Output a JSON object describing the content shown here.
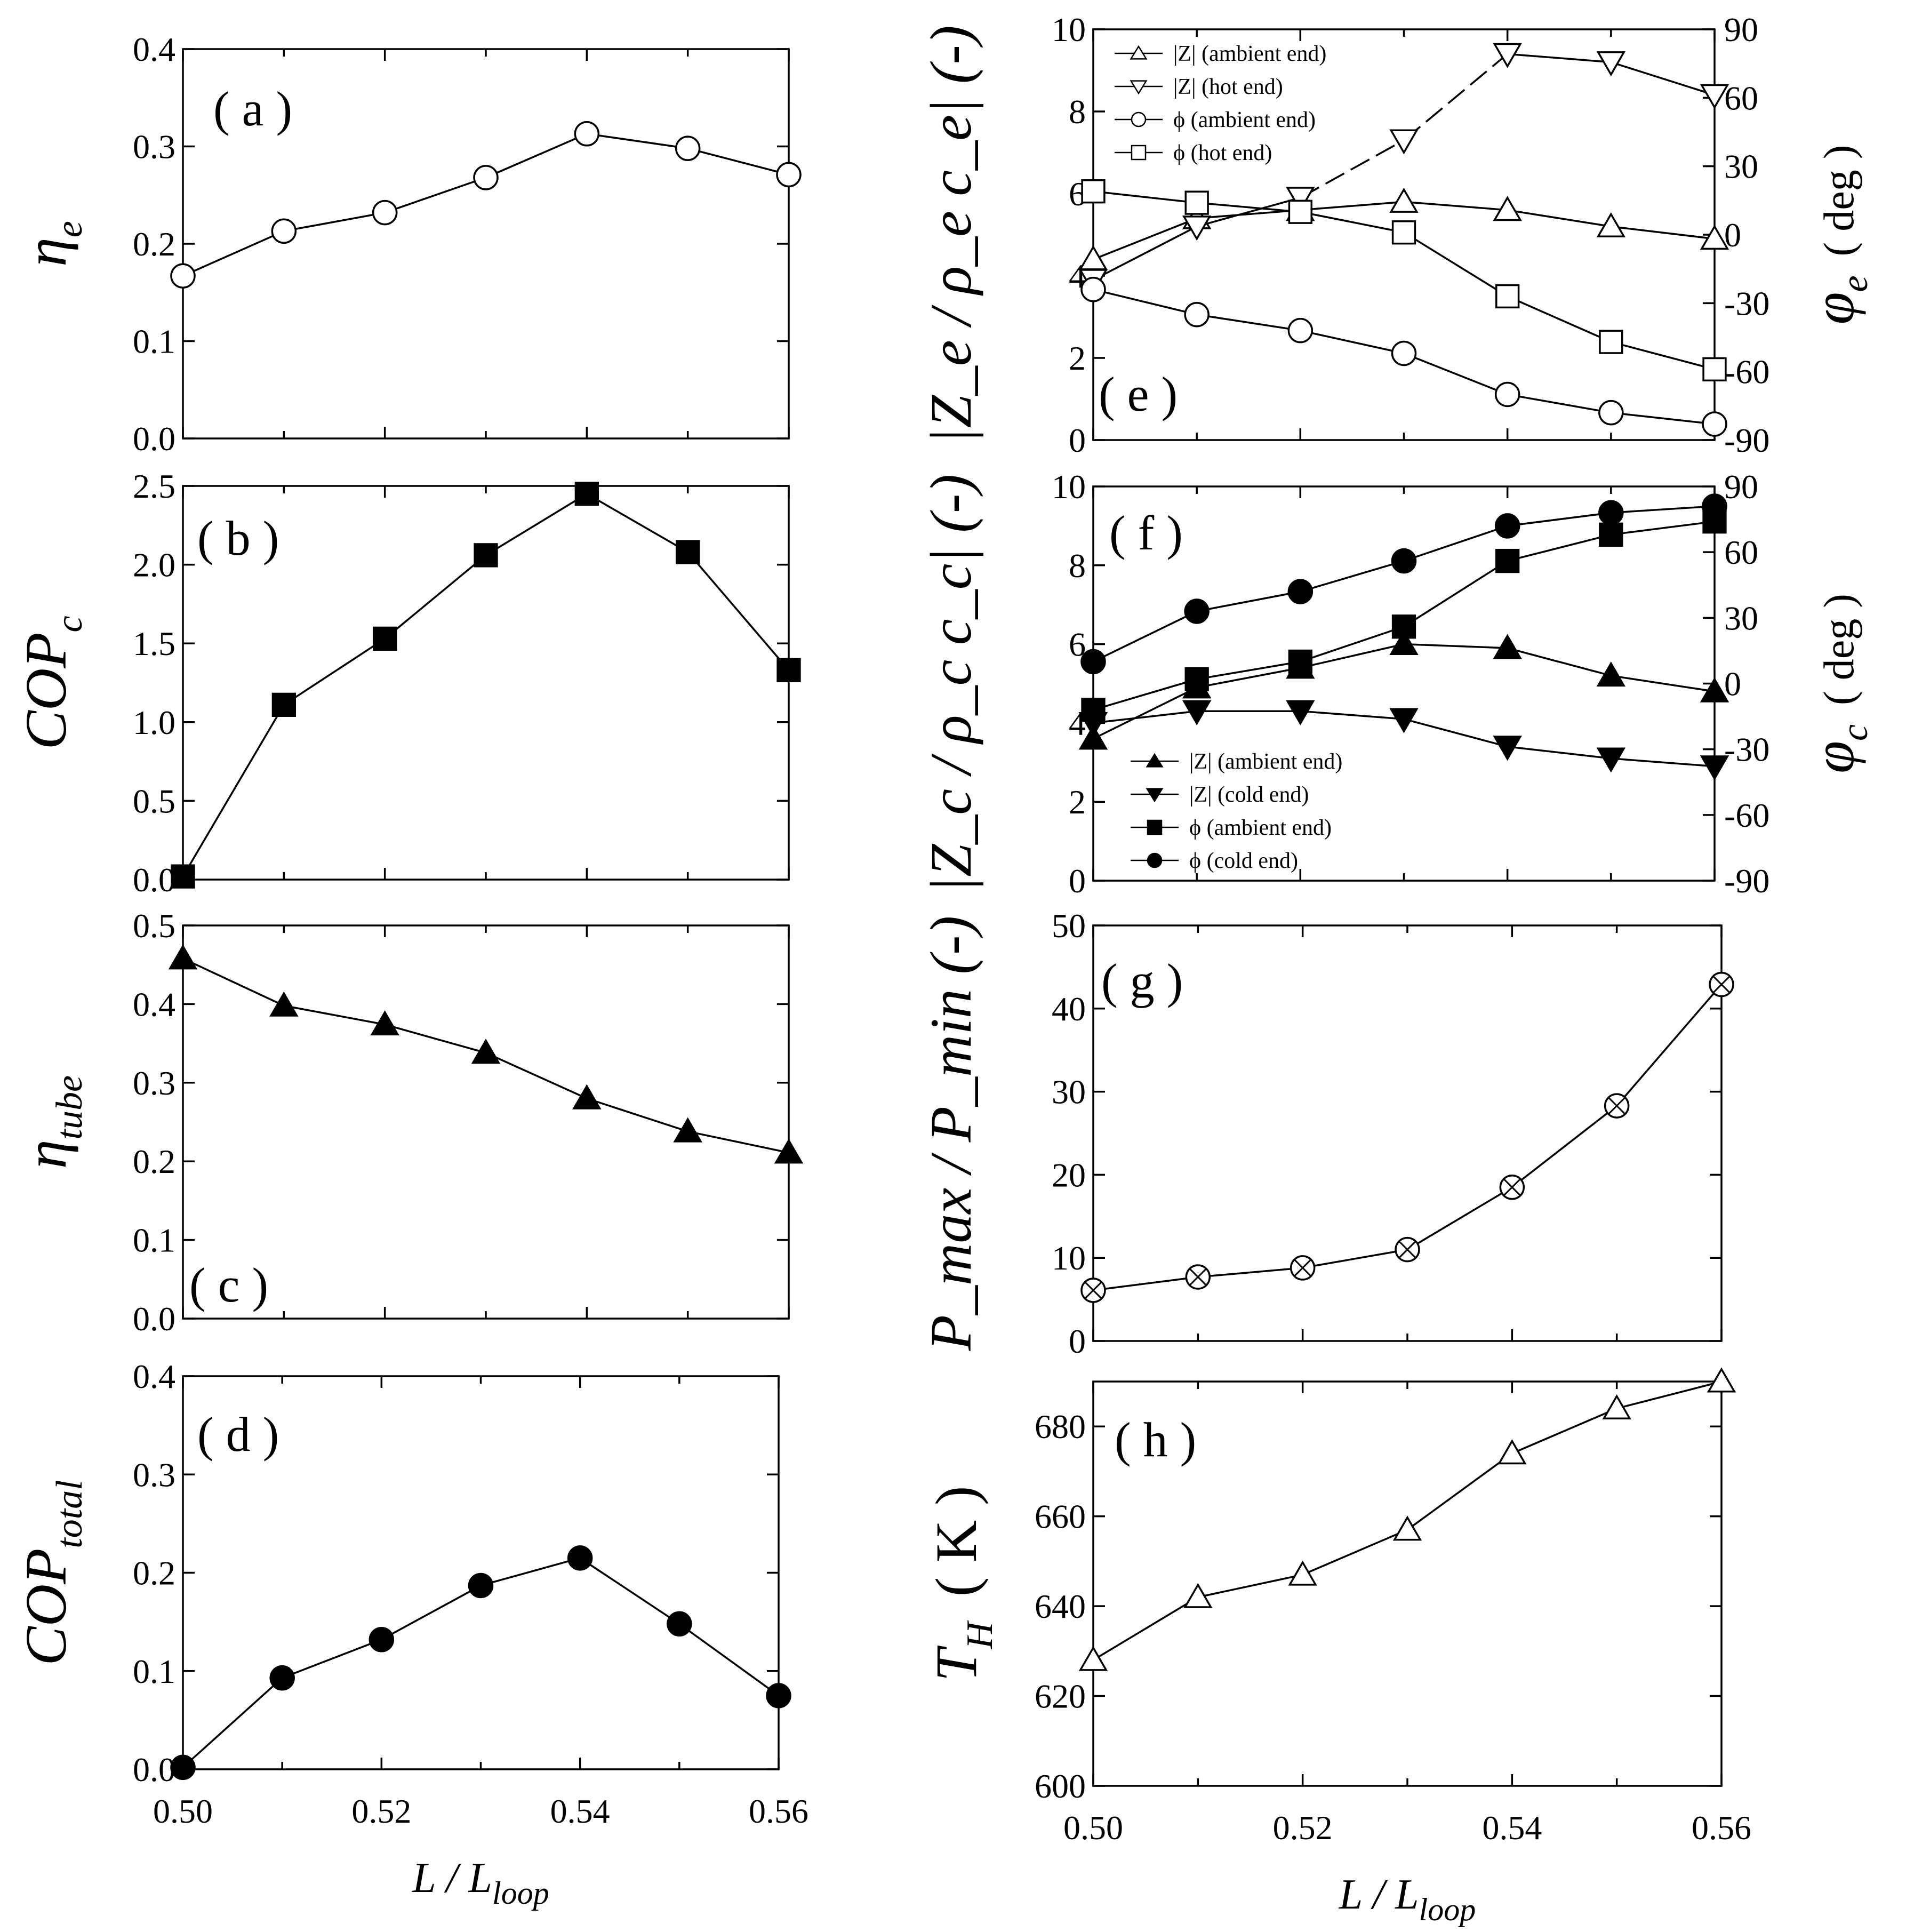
{
  "chart_data": [
    {
      "id": "a",
      "type": "line",
      "panel_label": "( a )",
      "ylabel": "η",
      "ylabel_sub": "e",
      "x": [
        0.5,
        0.51,
        0.52,
        0.53,
        0.54,
        0.55,
        0.56
      ],
      "xlim": [
        0.5,
        0.56
      ],
      "ylim": [
        0.0,
        0.4
      ],
      "yticks": [
        "0.0",
        "0.1",
        "0.2",
        "0.3",
        "0.4"
      ],
      "series": [
        {
          "name": "eta_e",
          "marker": "circle-open",
          "values": [
            0.167,
            0.213,
            0.232,
            0.268,
            0.313,
            0.298,
            0.271
          ]
        }
      ]
    },
    {
      "id": "b",
      "type": "line",
      "panel_label": "( b )",
      "ylabel": "COP",
      "ylabel_sub": "c",
      "x": [
        0.5,
        0.51,
        0.52,
        0.53,
        0.54,
        0.55,
        0.56
      ],
      "xlim": [
        0.5,
        0.56
      ],
      "ylim": [
        0.0,
        2.5
      ],
      "yticks": [
        "0.0",
        "0.5",
        "1.0",
        "1.5",
        "2.0",
        "2.5"
      ],
      "series": [
        {
          "name": "COP_c",
          "marker": "square-filled",
          "values": [
            0.02,
            1.11,
            1.53,
            2.06,
            2.45,
            2.08,
            1.33
          ]
        }
      ]
    },
    {
      "id": "c",
      "type": "line",
      "panel_label": "( c )",
      "ylabel": "η",
      "ylabel_sub": "tube",
      "x": [
        0.5,
        0.51,
        0.52,
        0.53,
        0.54,
        0.55,
        0.56
      ],
      "xlim": [
        0.5,
        0.56
      ],
      "ylim": [
        0.0,
        0.5
      ],
      "yticks": [
        "0.0",
        "0.1",
        "0.2",
        "0.3",
        "0.4",
        "0.5"
      ],
      "series": [
        {
          "name": "eta_tube",
          "marker": "triangle-up-filled",
          "values": [
            0.458,
            0.398,
            0.374,
            0.338,
            0.28,
            0.238,
            0.211
          ]
        }
      ]
    },
    {
      "id": "d",
      "type": "line",
      "panel_label": "( d )",
      "ylabel": "COP",
      "ylabel_sub": "total",
      "x": [
        0.5,
        0.51,
        0.52,
        0.53,
        0.54,
        0.55,
        0.56
      ],
      "xlim": [
        0.5,
        0.56
      ],
      "ylim": [
        0.0,
        0.4
      ],
      "yticks": [
        "0.0",
        "0.1",
        "0.2",
        "0.3",
        "0.4"
      ],
      "xticks": [
        "0.50",
        "0.52",
        "0.54",
        "0.56"
      ],
      "xlabel": "L / L",
      "xlabel_sub": "loop",
      "series": [
        {
          "name": "COP_total",
          "marker": "circle-filled",
          "values": [
            0.002,
            0.093,
            0.132,
            0.187,
            0.215,
            0.148,
            0.075
          ]
        }
      ]
    },
    {
      "id": "e",
      "type": "line",
      "panel_label": "( e )",
      "ylabel": "|Z",
      "ylabel_sub": "e",
      "ylabel_full": "|Z_e / ρ_e c_e| (-)",
      "y2label": "φ",
      "y2label_sub": "e",
      "y2label_unit": "( deg )",
      "x": [
        0.5,
        0.51,
        0.52,
        0.53,
        0.54,
        0.55,
        0.56
      ],
      "xlim": [
        0.5,
        0.56
      ],
      "ylim": [
        0,
        10
      ],
      "y2lim": [
        -90,
        90
      ],
      "yticks": [
        "0",
        "2",
        "4",
        "6",
        "8",
        "10"
      ],
      "y2ticks": [
        "-90",
        "-60",
        "-30",
        "0",
        "30",
        "60",
        "90"
      ],
      "series": [
        {
          "name": "|Z| (ambient end)",
          "axis": "left",
          "marker": "triangle-up-open",
          "values": [
            4.4,
            5.4,
            5.6,
            5.8,
            5.6,
            5.2,
            4.9
          ]
        },
        {
          "name": "|Z| (hot end)",
          "axis": "left",
          "marker": "triangle-down-open",
          "dashed_segments": [
            2,
            3
          ],
          "values": [
            3.9,
            5.2,
            5.9,
            7.3,
            9.4,
            9.2,
            8.4
          ]
        },
        {
          "name": "φ (ambient end)",
          "axis": "right",
          "marker": "circle-open",
          "values": [
            -24,
            -35,
            -42,
            -52,
            -70,
            -78,
            -83
          ]
        },
        {
          "name": "φ (hot end)",
          "axis": "right",
          "marker": "square-open",
          "values": [
            19,
            14,
            10,
            1,
            -27,
            -47,
            -59
          ]
        }
      ],
      "legend": [
        {
          "label": "|Z| (ambient end)",
          "marker": "triangle-up-open"
        },
        {
          "label": "|Z| (hot end)",
          "marker": "triangle-down-open"
        },
        {
          "label": "ϕ (ambient end)",
          "marker": "circle-open"
        },
        {
          "label": "ϕ (hot end)",
          "marker": "square-open"
        }
      ]
    },
    {
      "id": "f",
      "type": "line",
      "panel_label": "( f )",
      "ylabel": "|Z",
      "ylabel_sub": "c",
      "ylabel_full": "|Z_c / ρ_c c_c| (-)",
      "y2label": "φ",
      "y2label_sub": "c",
      "y2label_unit": "( deg )",
      "x": [
        0.5,
        0.51,
        0.52,
        0.53,
        0.54,
        0.55,
        0.56
      ],
      "xlim": [
        0.5,
        0.56
      ],
      "ylim": [
        0,
        10
      ],
      "y2lim": [
        -90,
        90
      ],
      "yticks": [
        "0",
        "2",
        "4",
        "6",
        "8",
        "10"
      ],
      "y2ticks": [
        "-90",
        "-60",
        "-30",
        "0",
        "30",
        "60",
        "90"
      ],
      "series": [
        {
          "name": "|Z| (ambient end)",
          "axis": "left",
          "marker": "triangle-up-filled",
          "values": [
            3.6,
            4.9,
            5.4,
            6.0,
            5.9,
            5.2,
            4.8
          ]
        },
        {
          "name": "|Z| (cold end)",
          "axis": "left",
          "marker": "triangle-down-filled",
          "values": [
            4.0,
            4.3,
            4.3,
            4.1,
            3.4,
            3.1,
            2.9
          ]
        },
        {
          "name": "φ (ambient end)",
          "axis": "right",
          "marker": "square-filled",
          "values": [
            -12,
            2,
            10,
            26,
            56,
            68,
            74
          ]
        },
        {
          "name": "φ (cold end)",
          "axis": "right",
          "marker": "circle-filled",
          "values": [
            10,
            33,
            42,
            56,
            72,
            78,
            81
          ]
        }
      ],
      "legend": [
        {
          "label": "|Z| (ambient end)",
          "marker": "triangle-up-filled"
        },
        {
          "label": "|Z| (cold end)",
          "marker": "triangle-down-filled"
        },
        {
          "label": "ϕ (ambient end)",
          "marker": "square-filled"
        },
        {
          "label": "ϕ (cold end)",
          "marker": "circle-filled"
        }
      ]
    },
    {
      "id": "g",
      "type": "line",
      "panel_label": "( g )",
      "ylabel_full": "P_max / P_min (-)",
      "x": [
        0.5,
        0.51,
        0.52,
        0.53,
        0.54,
        0.55,
        0.56
      ],
      "xlim": [
        0.5,
        0.56
      ],
      "ylim": [
        0,
        50
      ],
      "yticks": [
        "0",
        "10",
        "20",
        "30",
        "40",
        "50"
      ],
      "series": [
        {
          "name": "Pmax/Pmin",
          "marker": "circle-cross",
          "values": [
            6.1,
            7.7,
            8.8,
            11.0,
            18.5,
            28.3,
            42.9
          ]
        }
      ]
    },
    {
      "id": "h",
      "type": "line",
      "panel_label": "( h )",
      "ylabel": "T",
      "ylabel_sub": "H",
      "ylabel_unit": "( K )",
      "x": [
        0.5,
        0.51,
        0.52,
        0.53,
        0.54,
        0.55,
        0.56
      ],
      "xlim": [
        0.5,
        0.56
      ],
      "ylim": [
        600,
        690
      ],
      "yticks": [
        "600",
        "620",
        "640",
        "660",
        "680"
      ],
      "xticks": [
        "0.50",
        "0.52",
        "0.54",
        "0.56"
      ],
      "xlabel": "L / L",
      "xlabel_sub": "loop",
      "series": [
        {
          "name": "T_H",
          "marker": "triangle-up-open",
          "values": [
            628,
            642,
            647,
            657,
            674,
            684,
            690
          ]
        }
      ]
    }
  ]
}
